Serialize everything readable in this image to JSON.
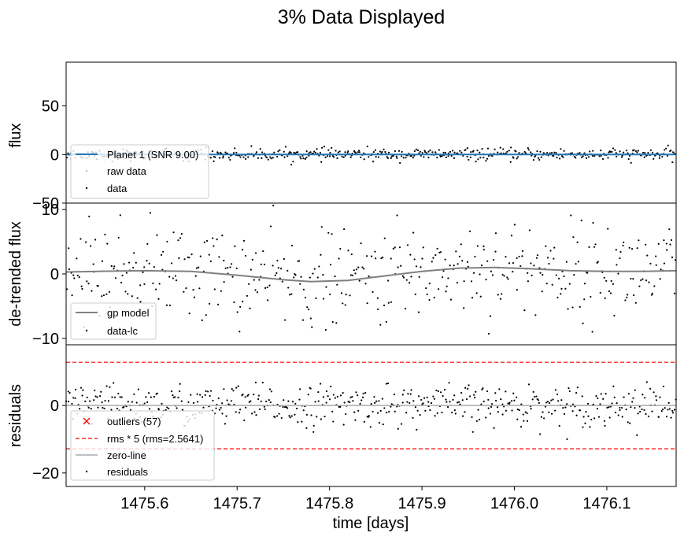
{
  "figure": {
    "title": "3% Data Displayed",
    "xlabel": "time [days]"
  },
  "chart_data": [
    {
      "type": "scatter",
      "panel": "flux",
      "ylabel": "flux",
      "xlim": [
        1475.515,
        1476.175
      ],
      "ylim": [
        -50,
        95
      ],
      "yticks": [
        50,
        0,
        -50
      ],
      "xticks": [
        1475.6,
        1475.7,
        1475.8,
        1475.9,
        1476.0,
        1476.1
      ],
      "legend_position": "lower-left",
      "series": [
        {
          "name": "Planet 1 (SNR 9.00)",
          "kind": "line",
          "color": "#1f77b4",
          "constant_y": 0
        },
        {
          "name": "raw data",
          "kind": "points",
          "color": "#bbbbbb"
        },
        {
          "name": "data",
          "kind": "points",
          "color": "#000000"
        }
      ]
    },
    {
      "type": "scatter",
      "panel": "detrended",
      "ylabel": "de-trended flux",
      "xlim": [
        1475.515,
        1476.175
      ],
      "ylim": [
        -11,
        11
      ],
      "yticks": [
        10,
        0,
        -10
      ],
      "legend_position": "lower-left",
      "series": [
        {
          "name": "gp model",
          "kind": "line",
          "color": "#808080",
          "x": [
            1475.515,
            1475.55,
            1475.6,
            1475.65,
            1475.7,
            1475.75,
            1475.78,
            1475.82,
            1475.86,
            1475.9,
            1475.94,
            1475.98,
            1476.02,
            1476.06,
            1476.1,
            1476.14,
            1476.175
          ],
          "y": [
            0.3,
            0.4,
            0.5,
            0.4,
            -0.2,
            -0.9,
            -1.2,
            -1.0,
            -0.3,
            0.4,
            0.9,
            1.0,
            0.8,
            0.5,
            0.4,
            0.4,
            0.5
          ]
        },
        {
          "name": "data-lc",
          "kind": "points",
          "color": "#000000"
        }
      ]
    },
    {
      "type": "scatter",
      "panel": "residuals",
      "ylabel": "residuals",
      "xlim": [
        1475.515,
        1476.175
      ],
      "ylim": [
        -24,
        18
      ],
      "yticks": [
        0,
        -20
      ],
      "legend_position": "lower-left",
      "series": [
        {
          "name": "outliers (57)",
          "kind": "marker-x",
          "color": "#ff0000"
        },
        {
          "name": "rms * 5 (rms=2.5641)",
          "kind": "dashed-hlines",
          "color": "#ff0000",
          "y_values": [
            12.8205,
            -12.8205
          ]
        },
        {
          "name": "zero-line",
          "kind": "line",
          "color": "#aaaaaa",
          "constant_y": 0
        },
        {
          "name": "residuals",
          "kind": "points",
          "color": "#000000"
        }
      ]
    }
  ]
}
